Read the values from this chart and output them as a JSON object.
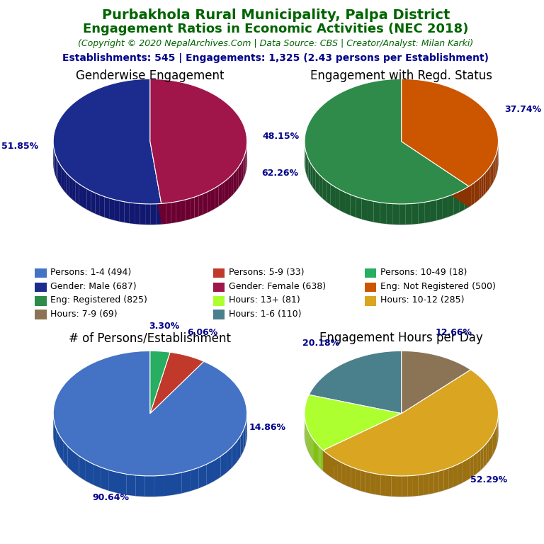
{
  "title_line1": "Purbakhola Rural Municipality, Palpa District",
  "title_line2": "Engagement Ratios in Economic Activities (NEC 2018)",
  "title_color": "#006400",
  "copyright_text": "(Copyright © 2020 NepalArchives.Com | Data Source: CBS | Creator/Analyst: Milan Karki)",
  "copyright_color": "#006400",
  "stats_text": "Establishments: 545 | Engagements: 1,325 (2.43 persons per Establishment)",
  "stats_color": "#00008B",
  "pie1_title": "Genderwise Engagement",
  "pie1_values": [
    51.85,
    48.15
  ],
  "pie1_colors": [
    "#1C2C8E",
    "#A0154A"
  ],
  "pie1_side_colors": [
    "#111870",
    "#6B0030"
  ],
  "pie1_labels": [
    "51.85%",
    "48.15%"
  ],
  "pie1_startangle": 90,
  "pie2_title": "Engagement with Regd. Status",
  "pie2_values": [
    62.26,
    37.74
  ],
  "pie2_colors": [
    "#2E8B4A",
    "#CC5500"
  ],
  "pie2_side_colors": [
    "#1A5C2E",
    "#8B3300"
  ],
  "pie2_labels": [
    "62.26%",
    "37.74%"
  ],
  "pie2_startangle": 90,
  "pie3_title": "# of Persons/Establishment",
  "pie3_values": [
    90.64,
    6.06,
    3.3
  ],
  "pie3_colors": [
    "#4472C4",
    "#C0392B",
    "#27AE60"
  ],
  "pie3_side_colors": [
    "#1A4A9C",
    "#8B1A10",
    "#1A7040"
  ],
  "pie3_labels": [
    "90.64%",
    "6.06%",
    "3.30%"
  ],
  "pie3_startangle": 90,
  "pie4_title": "Engagement Hours per Day",
  "pie4_values": [
    20.18,
    14.86,
    52.29,
    12.66
  ],
  "pie4_colors": [
    "#4A7F8C",
    "#ADFF2F",
    "#DAA520",
    "#8B7355"
  ],
  "pie4_side_colors": [
    "#2A5560",
    "#80C010",
    "#9B7010",
    "#5A4A2A"
  ],
  "pie4_labels": [
    "20.18%",
    "14.86%",
    "52.29%",
    "12.66%"
  ],
  "pie4_startangle": 90,
  "legend_items": [
    {
      "label": "Persons: 1-4 (494)",
      "color": "#4472C4"
    },
    {
      "label": "Persons: 5-9 (33)",
      "color": "#C0392B"
    },
    {
      "label": "Persons: 10-49 (18)",
      "color": "#27AE60"
    },
    {
      "label": "Gender: Male (687)",
      "color": "#1C2C8E"
    },
    {
      "label": "Gender: Female (638)",
      "color": "#A0154A"
    },
    {
      "label": "Eng: Not Registered (500)",
      "color": "#CC5500"
    },
    {
      "label": "Eng: Registered (825)",
      "color": "#2E8B4A"
    },
    {
      "label": "Hours: 13+ (81)",
      "color": "#ADFF2F"
    },
    {
      "label": "Hours: 10-12 (285)",
      "color": "#DAA520"
    },
    {
      "label": "Hours: 7-9 (69)",
      "color": "#8B7355"
    },
    {
      "label": "Hours: 1-6 (110)",
      "color": "#4A7F8C"
    }
  ],
  "bg_color": "#FFFFFF",
  "label_fontsize": 9,
  "title_fontsize": 14,
  "subtitle_fontsize": 13,
  "copyright_fontsize": 9,
  "stats_fontsize": 10,
  "pie_title_fontsize": 12,
  "legend_fontsize": 9,
  "label_color": "#00008B"
}
